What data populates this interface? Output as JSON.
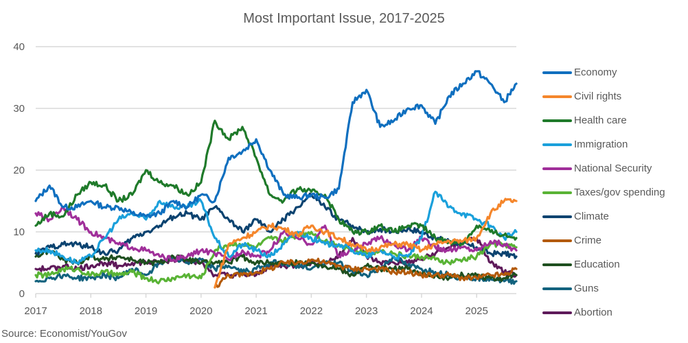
{
  "chart_data": {
    "type": "line",
    "title": "Most Important Issue, 2017-2025",
    "xlabel": "",
    "ylabel": "",
    "source": "Source: Economist/YouGov",
    "xlim": [
      2017,
      2025.72
    ],
    "ylim": [
      0,
      40
    ],
    "yticks": [
      0,
      10,
      20,
      30,
      40
    ],
    "xticks": [
      2017,
      2018,
      2019,
      2020,
      2021,
      2022,
      2023,
      2024,
      2025
    ],
    "xtick_labels": [
      "2017",
      "2018",
      "2019",
      "2020",
      "2021",
      "2022",
      "2023",
      "2024",
      "2025"
    ],
    "grid": "horizontal",
    "legend_position": "right",
    "x": [
      2017.0,
      2017.25,
      2017.5,
      2017.75,
      2018.0,
      2018.25,
      2018.5,
      2018.75,
      2019.0,
      2019.25,
      2019.5,
      2019.75,
      2020.0,
      2020.25,
      2020.5,
      2020.75,
      2021.0,
      2021.25,
      2021.5,
      2021.75,
      2022.0,
      2022.25,
      2022.5,
      2022.75,
      2023.0,
      2023.25,
      2023.5,
      2023.75,
      2024.0,
      2024.25,
      2024.5,
      2024.75,
      2025.0,
      2025.25,
      2025.5,
      2025.72
    ],
    "series": [
      {
        "name": "Economy",
        "color": "#0F6FBF",
        "values": [
          15,
          17.5,
          14,
          14,
          15,
          14,
          14,
          13,
          12.5,
          13,
          15,
          14,
          16,
          15,
          22,
          23,
          25,
          20,
          16,
          15.5,
          16,
          15.5,
          17,
          31,
          33,
          27,
          28,
          30,
          30.5,
          27.5,
          32,
          34,
          36,
          34,
          31,
          34
        ]
      },
      {
        "name": "Civil rights",
        "color": "#F5862B",
        "values": [
          null,
          null,
          null,
          null,
          null,
          null,
          null,
          null,
          null,
          null,
          null,
          null,
          null,
          1,
          8,
          9,
          10,
          11,
          10.5,
          9.5,
          11,
          10,
          9,
          8,
          7,
          7.5,
          8,
          8,
          7,
          8,
          8.5,
          8.5,
          9,
          13,
          15,
          15
        ]
      },
      {
        "name": "Health care",
        "color": "#1F7A2A",
        "values": [
          11,
          13,
          12.5,
          16,
          18,
          17.5,
          15,
          16,
          20,
          18,
          17.5,
          16,
          18,
          28,
          25,
          27,
          22,
          16,
          15,
          17,
          16.5,
          16,
          12,
          10,
          10,
          11,
          10,
          11,
          11,
          9,
          8.5,
          8,
          11,
          10,
          9.5,
          9
        ]
      },
      {
        "name": "Immigration",
        "color": "#1AA0DB",
        "values": [
          7,
          7,
          6,
          5,
          6,
          9,
          12,
          13,
          12,
          15,
          14,
          14,
          15,
          9,
          6,
          8,
          7,
          6,
          8,
          10,
          9,
          8,
          8,
          7,
          6,
          7,
          6,
          6,
          9,
          16.5,
          14,
          13,
          12,
          11,
          9,
          10
        ]
      },
      {
        "name": "National Security",
        "color": "#A02F9A",
        "values": [
          13,
          12,
          14,
          12,
          10,
          9,
          8,
          7.5,
          7,
          6,
          5.5,
          6,
          7,
          6.5,
          5.5,
          7,
          6,
          7,
          10,
          9,
          8,
          11,
          6,
          7,
          8,
          9,
          8,
          7,
          9,
          7.5,
          7,
          7.5,
          7,
          8.5,
          8,
          7
        ]
      },
      {
        "name": "Taxes/gov spending",
        "color": "#59B335",
        "values": [
          3,
          3,
          4,
          4,
          3,
          3.5,
          3,
          3.5,
          2.5,
          2,
          2.5,
          3,
          2.5,
          7,
          8,
          8,
          7.5,
          9,
          8.5,
          9.5,
          10,
          8.5,
          8,
          7,
          6.5,
          7,
          6.5,
          6,
          6,
          5.5,
          5,
          5.5,
          6,
          8,
          8,
          7.5
        ]
      },
      {
        "name": "Climate",
        "color": "#0B4370",
        "values": [
          6.5,
          7.5,
          8,
          8,
          7.5,
          6.5,
          7,
          9,
          10,
          11,
          12.5,
          13,
          12,
          14,
          12,
          10,
          12,
          10,
          12,
          14,
          16,
          14,
          12,
          11,
          10,
          10.5,
          10,
          10.5,
          10,
          9,
          8.5,
          8,
          7.5,
          6.5,
          6.5,
          6
        ]
      },
      {
        "name": "Crime",
        "color": "#B35A0A",
        "values": [
          null,
          null,
          null,
          null,
          null,
          null,
          null,
          null,
          null,
          null,
          null,
          null,
          null,
          1,
          3,
          3,
          3.5,
          4,
          5,
          5,
          5.5,
          5,
          4.5,
          4,
          4,
          4,
          3.5,
          3.5,
          3,
          3,
          3,
          2.5,
          2.5,
          3,
          3,
          4
        ]
      },
      {
        "name": "Education",
        "color": "#1E4F1F",
        "values": [
          6,
          7,
          5.5,
          5,
          6,
          5.5,
          6,
          5.5,
          5,
          5,
          6,
          5.5,
          5,
          5,
          5,
          6,
          5,
          5,
          5,
          5,
          5,
          4.5,
          4,
          3,
          4.5,
          4,
          4,
          4,
          3,
          3,
          2.5,
          3,
          3,
          2.5,
          2.5,
          3
        ]
      },
      {
        "name": "Guns",
        "color": "#12627E",
        "values": [
          2,
          2.5,
          3,
          2.5,
          2.5,
          3,
          2.5,
          4,
          3,
          5,
          6,
          5,
          5.5,
          4,
          4.5,
          3.5,
          4,
          5,
          5,
          4.5,
          4,
          5,
          5,
          3.5,
          3,
          4,
          6,
          4.5,
          4,
          3.5,
          3,
          2.5,
          2.5,
          2.5,
          2,
          2
        ]
      },
      {
        "name": "Abortion",
        "color": "#5E1A5A",
        "values": [
          4,
          4,
          4.5,
          4,
          4.5,
          5,
          4.5,
          5,
          5,
          5,
          5.5,
          5.5,
          5,
          3,
          3,
          3,
          3,
          4.5,
          4.5,
          4.5,
          5,
          5,
          6,
          9,
          6,
          5,
          5,
          5,
          5.5,
          6.5,
          7.5,
          8.5,
          9,
          5,
          3.5,
          3
        ]
      }
    ]
  }
}
